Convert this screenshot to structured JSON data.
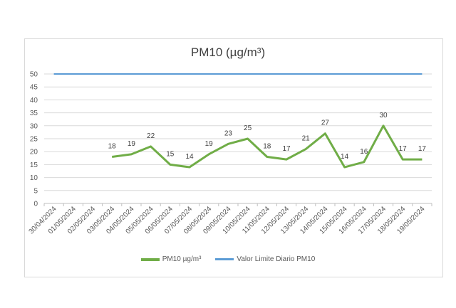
{
  "chart_data": {
    "type": "line",
    "title": "PM10 (µg/m³)",
    "xlabel": "",
    "ylabel": "",
    "ylim": [
      0,
      50
    ],
    "yticks": [
      0,
      5,
      10,
      15,
      20,
      25,
      30,
      35,
      40,
      45,
      50
    ],
    "grid": true,
    "legend_position": "bottom",
    "categories": [
      "30/04/2024",
      "01/05/2024",
      "02/05/2024",
      "03/05/2024",
      "04/05/2024",
      "05/05/2024",
      "06/05/2024",
      "07/05/2024",
      "08/05/2024",
      "09/05/2024",
      "10/05/2024",
      "11/05/2024",
      "12/05/2024",
      "13/05/2024",
      "14/05/2024",
      "15/05/2024",
      "16/05/2024",
      "17/05/2024",
      "18/05/2024",
      "19/05/2024"
    ],
    "series": [
      {
        "name": "PM10 µg/m³",
        "color": "#70ad47",
        "values": [
          null,
          null,
          null,
          18,
          19,
          22,
          15,
          14,
          19,
          23,
          25,
          18,
          17,
          21,
          27,
          14,
          16,
          30,
          17,
          17
        ],
        "data_labels": true
      },
      {
        "name": "Valor Limite Diario PM10",
        "color": "#5b9bd5",
        "values": [
          50,
          50,
          50,
          50,
          50,
          50,
          50,
          50,
          50,
          50,
          50,
          50,
          50,
          50,
          50,
          50,
          50,
          50,
          50,
          50
        ],
        "data_labels": false
      }
    ]
  }
}
